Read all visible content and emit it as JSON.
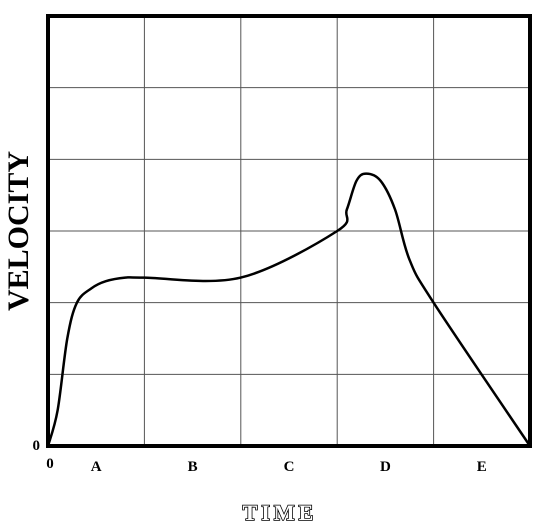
{
  "chart_data": {
    "type": "line",
    "title": "",
    "xlabel": "TIME",
    "ylabel": "VELOCITY",
    "x_origin_label": "0",
    "y_origin_label": "0",
    "categories": [
      "A",
      "B",
      "C",
      "D",
      "E"
    ],
    "xlim": [
      0,
      5
    ],
    "ylim": [
      0,
      6
    ],
    "grid": true,
    "legend": "none",
    "series": [
      {
        "values": [
          [
            0,
            0
          ],
          [
            0.1,
            0.5
          ],
          [
            0.2,
            1.5
          ],
          [
            0.3,
            2.0
          ],
          [
            0.45,
            2.2
          ],
          [
            0.6,
            2.3
          ],
          [
            0.8,
            2.35
          ],
          [
            1.0,
            2.35
          ],
          [
            2.0,
            2.35
          ],
          [
            3.0,
            3.0
          ],
          [
            3.1,
            3.3
          ],
          [
            3.2,
            3.7
          ],
          [
            3.3,
            3.8
          ],
          [
            3.45,
            3.7
          ],
          [
            3.6,
            3.3
          ],
          [
            3.75,
            2.6
          ],
          [
            4.0,
            2.0
          ],
          [
            5.0,
            0
          ]
        ]
      }
    ]
  }
}
